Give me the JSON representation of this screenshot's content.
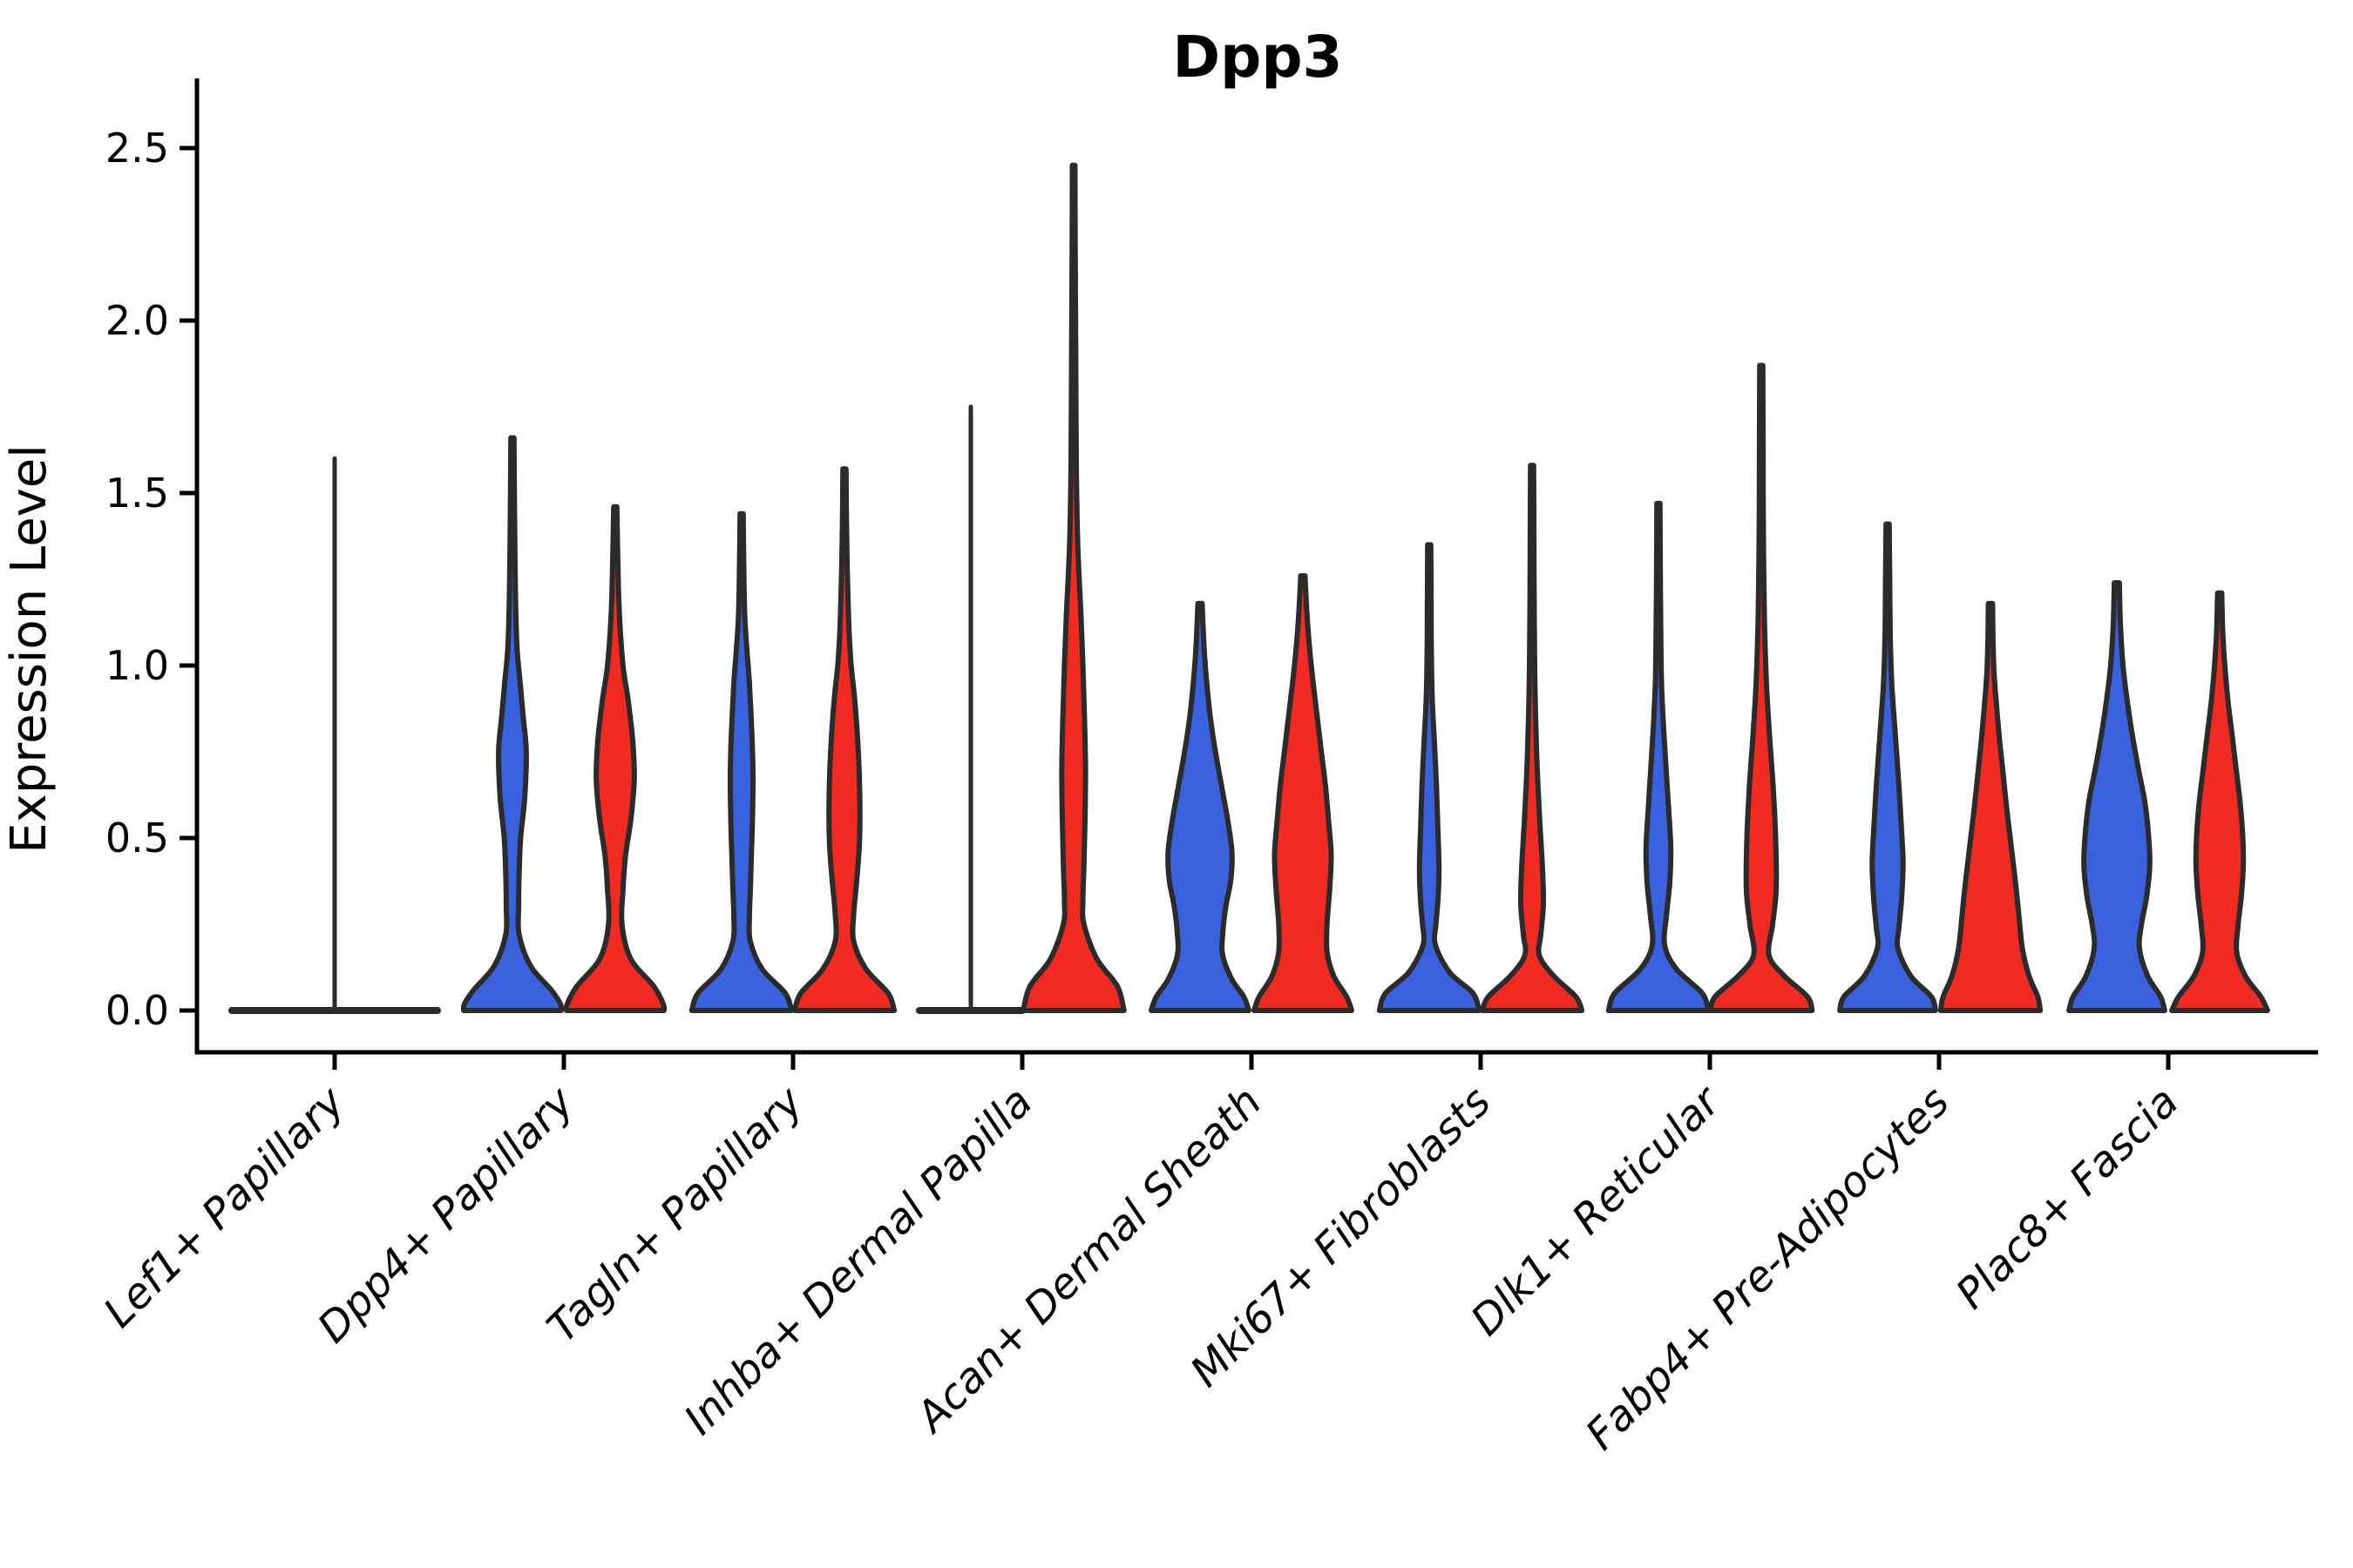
{
  "chart_data": {
    "type": "violin",
    "title": "Dpp3",
    "ylabel": "Expression Level",
    "xlabel": "",
    "ylim": [
      0.0,
      2.5
    ],
    "yticks": [
      "0.0",
      "0.5",
      "1.0",
      "1.5",
      "2.0",
      "2.5"
    ],
    "grid": "off",
    "legend": "none",
    "categories": [
      "Lef1+ Papillary",
      "Dpp4+ Papillary",
      "Tagln+ Papillary",
      "Inhba+ Dermal Papilla",
      "Acan+ Dermal Sheath",
      "Mki67+ Fibroblasts",
      "Dlk1+ Reticular",
      "Fabp4+ Pre-Adipocytes",
      "Plac8+ Fascia"
    ],
    "colors": {
      "blue": "#3B62DE",
      "red": "#F22B22",
      "outline": "#2B2B2B",
      "axis": "#000000"
    },
    "violins": [
      {
        "category": "Lef1+ Papillary",
        "group": "single",
        "position": "center",
        "collapsed": true,
        "flat_half": 2.0,
        "max": 1.6,
        "profile": []
      },
      {
        "category": "Dpp4+ Papillary",
        "group": "blue",
        "position": "left",
        "collapsed": false,
        "max": 1.66,
        "profile": [
          [
            1.66,
            0.03
          ],
          [
            1.45,
            0.04
          ],
          [
            1.2,
            0.06
          ],
          [
            1.05,
            0.09
          ],
          [
            0.95,
            0.15
          ],
          [
            0.85,
            0.21
          ],
          [
            0.75,
            0.27
          ],
          [
            0.62,
            0.24
          ],
          [
            0.5,
            0.16
          ],
          [
            0.4,
            0.13
          ],
          [
            0.3,
            0.12
          ],
          [
            0.22,
            0.13
          ],
          [
            0.13,
            0.35
          ],
          [
            0.06,
            0.75
          ],
          [
            0.02,
            0.93
          ],
          [
            0.0,
            0.95
          ]
        ]
      },
      {
        "category": "Dpp4+ Papillary",
        "group": "red",
        "position": "right",
        "collapsed": false,
        "max": 1.46,
        "profile": [
          [
            1.46,
            0.03
          ],
          [
            1.3,
            0.05
          ],
          [
            1.15,
            0.08
          ],
          [
            1.0,
            0.15
          ],
          [
            0.9,
            0.25
          ],
          [
            0.78,
            0.34
          ],
          [
            0.67,
            0.37
          ],
          [
            0.55,
            0.3
          ],
          [
            0.45,
            0.2
          ],
          [
            0.35,
            0.15
          ],
          [
            0.25,
            0.13
          ],
          [
            0.15,
            0.3
          ],
          [
            0.07,
            0.75
          ],
          [
            0.02,
            0.93
          ],
          [
            0.0,
            0.95
          ]
        ]
      },
      {
        "category": "Tagln+ Papillary",
        "group": "blue",
        "position": "left",
        "collapsed": false,
        "max": 1.44,
        "profile": [
          [
            1.44,
            0.03
          ],
          [
            1.3,
            0.04
          ],
          [
            1.15,
            0.06
          ],
          [
            1.05,
            0.1
          ],
          [
            0.95,
            0.15
          ],
          [
            0.8,
            0.2
          ],
          [
            0.68,
            0.22
          ],
          [
            0.55,
            0.21
          ],
          [
            0.45,
            0.19
          ],
          [
            0.35,
            0.17
          ],
          [
            0.27,
            0.15
          ],
          [
            0.2,
            0.17
          ],
          [
            0.12,
            0.4
          ],
          [
            0.05,
            0.85
          ],
          [
            0.0,
            0.97
          ]
        ]
      },
      {
        "category": "Tagln+ Papillary",
        "group": "red",
        "position": "right",
        "collapsed": false,
        "max": 1.57,
        "profile": [
          [
            1.57,
            0.03
          ],
          [
            1.4,
            0.04
          ],
          [
            1.25,
            0.06
          ],
          [
            1.1,
            0.09
          ],
          [
            1.0,
            0.13
          ],
          [
            0.9,
            0.2
          ],
          [
            0.75,
            0.27
          ],
          [
            0.6,
            0.3
          ],
          [
            0.48,
            0.29
          ],
          [
            0.38,
            0.24
          ],
          [
            0.28,
            0.18
          ],
          [
            0.2,
            0.18
          ],
          [
            0.12,
            0.42
          ],
          [
            0.05,
            0.85
          ],
          [
            0.0,
            0.97
          ]
        ]
      },
      {
        "category": "Inhba+ Dermal Papilla",
        "group": "blue",
        "position": "left",
        "collapsed": true,
        "flat_half": 1.0,
        "max": 1.75,
        "profile": []
      },
      {
        "category": "Inhba+ Dermal Papilla",
        "group": "red",
        "position": "right",
        "collapsed": false,
        "max": 2.45,
        "profile": [
          [
            2.45,
            0.025
          ],
          [
            2.2,
            0.03
          ],
          [
            1.9,
            0.04
          ],
          [
            1.6,
            0.05
          ],
          [
            1.35,
            0.08
          ],
          [
            1.15,
            0.14
          ],
          [
            1.0,
            0.18
          ],
          [
            0.85,
            0.21
          ],
          [
            0.7,
            0.23
          ],
          [
            0.55,
            0.22
          ],
          [
            0.42,
            0.2
          ],
          [
            0.32,
            0.18
          ],
          [
            0.25,
            0.2
          ],
          [
            0.15,
            0.45
          ],
          [
            0.07,
            0.85
          ],
          [
            0.0,
            0.98
          ]
        ]
      },
      {
        "category": "Acan+ Dermal Sheath",
        "group": "blue",
        "position": "left",
        "collapsed": false,
        "max": 1.18,
        "profile": [
          [
            1.18,
            0.04
          ],
          [
            1.05,
            0.08
          ],
          [
            0.95,
            0.13
          ],
          [
            0.85,
            0.2
          ],
          [
            0.75,
            0.3
          ],
          [
            0.65,
            0.42
          ],
          [
            0.55,
            0.54
          ],
          [
            0.46,
            0.62
          ],
          [
            0.38,
            0.6
          ],
          [
            0.3,
            0.5
          ],
          [
            0.22,
            0.44
          ],
          [
            0.16,
            0.44
          ],
          [
            0.09,
            0.62
          ],
          [
            0.04,
            0.85
          ],
          [
            0.0,
            0.95
          ]
        ]
      },
      {
        "category": "Acan+ Dermal Sheath",
        "group": "red",
        "position": "right",
        "collapsed": false,
        "max": 1.26,
        "profile": [
          [
            1.26,
            0.04
          ],
          [
            1.15,
            0.08
          ],
          [
            1.05,
            0.13
          ],
          [
            0.95,
            0.2
          ],
          [
            0.85,
            0.28
          ],
          [
            0.75,
            0.36
          ],
          [
            0.65,
            0.44
          ],
          [
            0.55,
            0.5
          ],
          [
            0.45,
            0.55
          ],
          [
            0.35,
            0.52
          ],
          [
            0.25,
            0.47
          ],
          [
            0.17,
            0.47
          ],
          [
            0.1,
            0.6
          ],
          [
            0.04,
            0.85
          ],
          [
            0.0,
            0.95
          ]
        ]
      },
      {
        "category": "Mki67+ Fibroblasts",
        "group": "blue",
        "position": "left",
        "collapsed": false,
        "max": 1.35,
        "profile": [
          [
            1.35,
            0.03
          ],
          [
            1.2,
            0.035
          ],
          [
            1.05,
            0.04
          ],
          [
            0.9,
            0.06
          ],
          [
            0.78,
            0.1
          ],
          [
            0.65,
            0.14
          ],
          [
            0.52,
            0.17
          ],
          [
            0.41,
            0.19
          ],
          [
            0.32,
            0.17
          ],
          [
            0.25,
            0.13
          ],
          [
            0.19,
            0.12
          ],
          [
            0.11,
            0.4
          ],
          [
            0.05,
            0.85
          ],
          [
            0.0,
            0.97
          ]
        ]
      },
      {
        "category": "Mki67+ Fibroblasts",
        "group": "red",
        "position": "right",
        "collapsed": false,
        "max": 1.58,
        "profile": [
          [
            1.58,
            0.03
          ],
          [
            1.4,
            0.035
          ],
          [
            1.2,
            0.04
          ],
          [
            1.0,
            0.05
          ],
          [
            0.85,
            0.07
          ],
          [
            0.7,
            0.1
          ],
          [
            0.55,
            0.15
          ],
          [
            0.42,
            0.2
          ],
          [
            0.31,
            0.22
          ],
          [
            0.22,
            0.17
          ],
          [
            0.16,
            0.14
          ],
          [
            0.1,
            0.42
          ],
          [
            0.04,
            0.85
          ],
          [
            0.0,
            0.97
          ]
        ]
      },
      {
        "category": "Dlk1+ Reticular",
        "group": "blue",
        "position": "left",
        "collapsed": false,
        "max": 1.47,
        "profile": [
          [
            1.47,
            0.03
          ],
          [
            1.3,
            0.035
          ],
          [
            1.1,
            0.045
          ],
          [
            0.95,
            0.06
          ],
          [
            0.82,
            0.1
          ],
          [
            0.7,
            0.15
          ],
          [
            0.58,
            0.2
          ],
          [
            0.47,
            0.24
          ],
          [
            0.37,
            0.22
          ],
          [
            0.28,
            0.16
          ],
          [
            0.19,
            0.12
          ],
          [
            0.12,
            0.35
          ],
          [
            0.05,
            0.85
          ],
          [
            0.0,
            0.97
          ]
        ]
      },
      {
        "category": "Dlk1+ Reticular",
        "group": "red",
        "position": "right",
        "collapsed": false,
        "max": 1.87,
        "profile": [
          [
            1.87,
            0.03
          ],
          [
            1.65,
            0.035
          ],
          [
            1.4,
            0.04
          ],
          [
            1.15,
            0.06
          ],
          [
            0.95,
            0.1
          ],
          [
            0.8,
            0.16
          ],
          [
            0.65,
            0.23
          ],
          [
            0.5,
            0.28
          ],
          [
            0.35,
            0.29
          ],
          [
            0.25,
            0.22
          ],
          [
            0.16,
            0.15
          ],
          [
            0.1,
            0.45
          ],
          [
            0.04,
            0.9
          ],
          [
            0.0,
            0.99
          ]
        ]
      },
      {
        "category": "Fabp4+ Pre-Adipocytes",
        "group": "blue",
        "position": "left",
        "collapsed": false,
        "max": 1.41,
        "profile": [
          [
            1.41,
            0.03
          ],
          [
            1.25,
            0.04
          ],
          [
            1.1,
            0.05
          ],
          [
            0.95,
            0.08
          ],
          [
            0.8,
            0.15
          ],
          [
            0.65,
            0.22
          ],
          [
            0.5,
            0.28
          ],
          [
            0.42,
            0.3
          ],
          [
            0.32,
            0.27
          ],
          [
            0.24,
            0.22
          ],
          [
            0.18,
            0.2
          ],
          [
            0.1,
            0.45
          ],
          [
            0.04,
            0.85
          ],
          [
            0.0,
            0.93
          ]
        ]
      },
      {
        "category": "Fabp4+ Pre-Adipocytes",
        "group": "red",
        "position": "right",
        "collapsed": false,
        "max": 1.18,
        "profile": [
          [
            1.18,
            0.04
          ],
          [
            1.08,
            0.05
          ],
          [
            0.98,
            0.07
          ],
          [
            0.88,
            0.12
          ],
          [
            0.78,
            0.18
          ],
          [
            0.68,
            0.25
          ],
          [
            0.58,
            0.32
          ],
          [
            0.48,
            0.4
          ],
          [
            0.38,
            0.48
          ],
          [
            0.28,
            0.55
          ],
          [
            0.18,
            0.62
          ],
          [
            0.1,
            0.75
          ],
          [
            0.04,
            0.92
          ],
          [
            0.0,
            0.97
          ]
        ]
      },
      {
        "category": "Plac8+ Fascia",
        "group": "blue",
        "position": "left",
        "collapsed": false,
        "max": 1.24,
        "profile": [
          [
            1.24,
            0.05
          ],
          [
            1.12,
            0.07
          ],
          [
            1.0,
            0.12
          ],
          [
            0.9,
            0.2
          ],
          [
            0.8,
            0.3
          ],
          [
            0.7,
            0.42
          ],
          [
            0.6,
            0.55
          ],
          [
            0.5,
            0.62
          ],
          [
            0.42,
            0.64
          ],
          [
            0.33,
            0.58
          ],
          [
            0.25,
            0.48
          ],
          [
            0.18,
            0.44
          ],
          [
            0.1,
            0.6
          ],
          [
            0.04,
            0.85
          ],
          [
            0.0,
            0.93
          ]
        ]
      },
      {
        "category": "Plac8+ Fascia",
        "group": "red",
        "position": "right",
        "collapsed": false,
        "max": 1.21,
        "profile": [
          [
            1.21,
            0.04
          ],
          [
            1.1,
            0.06
          ],
          [
            1.0,
            0.1
          ],
          [
            0.9,
            0.16
          ],
          [
            0.8,
            0.24
          ],
          [
            0.7,
            0.32
          ],
          [
            0.6,
            0.4
          ],
          [
            0.5,
            0.45
          ],
          [
            0.42,
            0.46
          ],
          [
            0.33,
            0.42
          ],
          [
            0.25,
            0.36
          ],
          [
            0.17,
            0.33
          ],
          [
            0.1,
            0.5
          ],
          [
            0.04,
            0.8
          ],
          [
            0.0,
            0.93
          ]
        ]
      }
    ]
  }
}
